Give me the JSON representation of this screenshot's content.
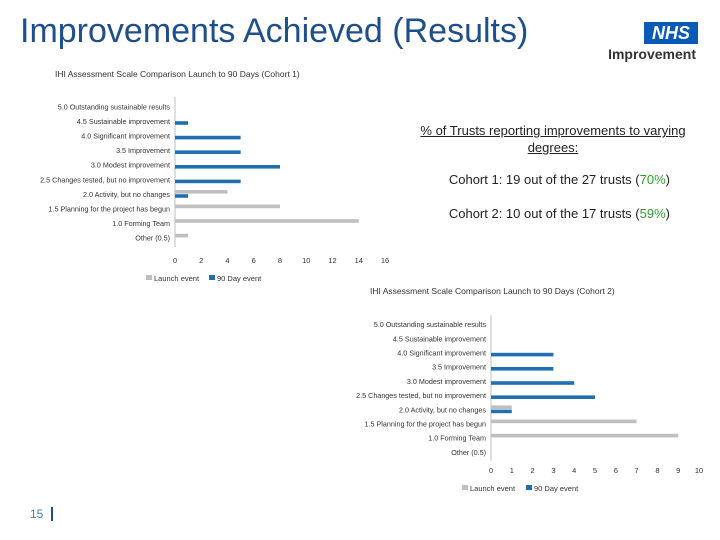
{
  "slide": {
    "title": "Improvements Achieved (Results)",
    "logo_text": "NHS",
    "logo_word": "Improvement",
    "page_number": "15"
  },
  "callout": {
    "heading": "% of Trusts reporting improvements to varying degrees:",
    "cohort1_text": "Cohort 1: 19 out of the 27 trusts (",
    "cohort1_pct": "70%",
    "cohort2_text": "Cohort 2: 10 out of the 17 trusts (",
    "cohort2_pct": "59%",
    "close_paren": ")"
  },
  "colors": {
    "launch": "#bfbfbf",
    "day90": "#1f6fb2",
    "title": "#1f4e8c",
    "highlight": "#2e9b2e"
  },
  "chart_data": [
    {
      "type": "bar",
      "orientation": "horizontal",
      "title": "IHI Assessment Scale Comparison Launch to 90 Days (Cohort 1)",
      "categories": [
        "5.0 Outstanding sustainable results",
        "4.5 Sustainable improvement",
        "4.0 Significant improvement",
        "3.5 Improvement",
        "3.0 Modest improvement",
        "2.5 Changes tested, but no improvement",
        "2.0 Activity, but no changes",
        "1.5 Planning for the project has begun",
        "1.0 Forming Team",
        "Other (0.5)"
      ],
      "series": [
        {
          "name": "Launch event",
          "values": [
            0,
            0,
            0,
            0,
            0,
            0,
            4,
            8,
            14,
            1
          ]
        },
        {
          "name": "90 Day event",
          "values": [
            0,
            1,
            5,
            5,
            8,
            5,
            1,
            0,
            0,
            0
          ]
        }
      ],
      "xlim": [
        0,
        16
      ],
      "xticks": [
        0,
        2,
        4,
        6,
        8,
        10,
        12,
        14,
        16
      ],
      "legend": "bottom-left"
    },
    {
      "type": "bar",
      "orientation": "horizontal",
      "title": "IHI Assessment Scale Comparison Launch to 90 Days (Cohort 2)",
      "categories": [
        "5.0 Outstanding sustainable results",
        "4.5 Sustainable improvement",
        "4.0 Significant improvement",
        "3.5 Improvement",
        "3.0 Modest improvement",
        "2.5 Changes tested, but no improvement",
        "2.0 Activity, but no changes",
        "1.5 Planning for the project has begun",
        "1.0 Forming Team",
        "Other (0.5)"
      ],
      "series": [
        {
          "name": "Launch event",
          "values": [
            0,
            0,
            0,
            0,
            0,
            0,
            1,
            7,
            9,
            0
          ]
        },
        {
          "name": "90 Day event",
          "values": [
            0,
            0,
            3,
            3,
            4,
            5,
            1,
            0,
            0,
            0
          ]
        }
      ],
      "xlim": [
        0,
        10
      ],
      "xticks": [
        0,
        1,
        2,
        3,
        4,
        5,
        6,
        7,
        8,
        9,
        10
      ],
      "legend": "bottom"
    }
  ]
}
